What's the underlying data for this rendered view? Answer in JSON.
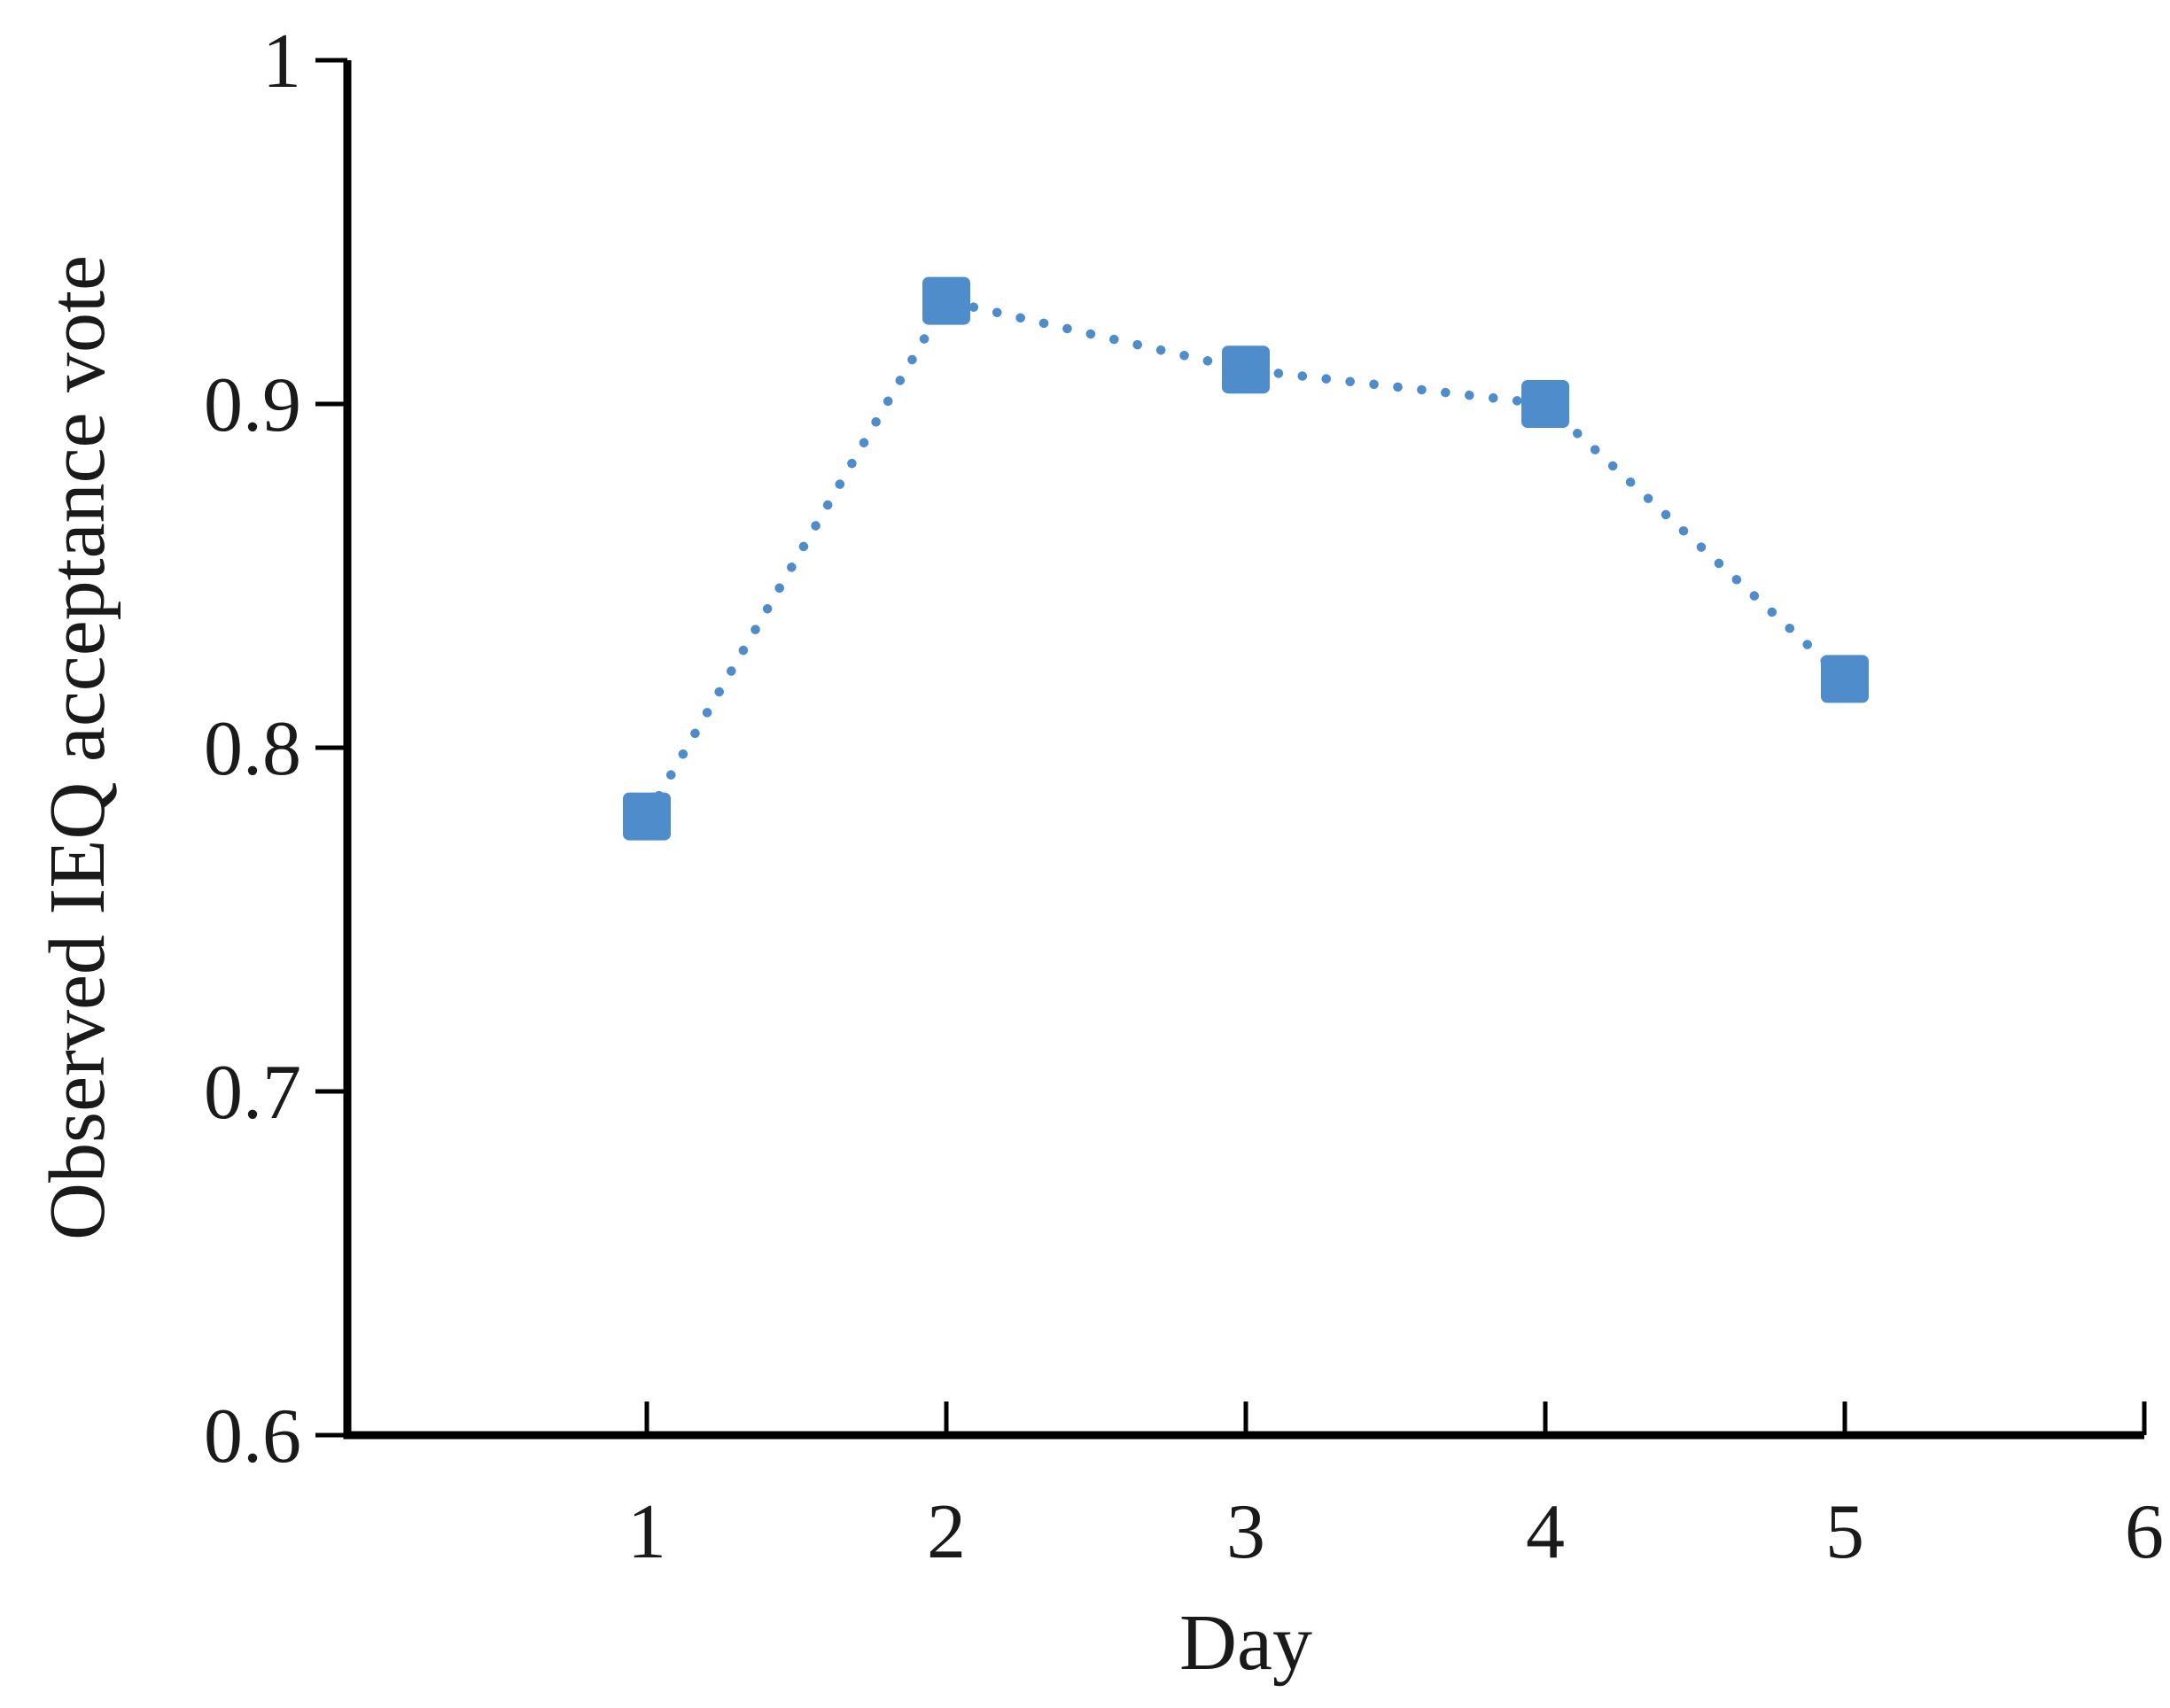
{
  "chart_data": {
    "type": "line",
    "title": "",
    "xlabel": "Day",
    "ylabel": "Observed IEQ acceptance vote",
    "x": [
      1,
      2,
      3,
      4,
      5
    ],
    "y": [
      0.78,
      0.93,
      0.91,
      0.9,
      0.82
    ],
    "series": [
      {
        "name": "Observed IEQ acceptance vote",
        "marker": "square",
        "line_style": "dotted",
        "color": "#4E8CCB"
      }
    ],
    "xlim": [
      0,
      6
    ],
    "ylim": [
      0.6,
      1.0
    ],
    "xticks": {
      "values": [
        1,
        2,
        3,
        4,
        5,
        6
      ],
      "labels": [
        "1",
        "2",
        "3",
        "4",
        "5",
        "6"
      ]
    },
    "yticks": {
      "values": [
        0.6,
        0.7,
        0.8,
        0.9,
        1.0
      ],
      "labels": [
        "0.6",
        "0.7",
        "0.8",
        "0.9",
        "1"
      ]
    },
    "grid": false,
    "legend": "none",
    "axis_color": "#000000",
    "text_color": "#1a1a1a",
    "background": "#ffffff"
  }
}
